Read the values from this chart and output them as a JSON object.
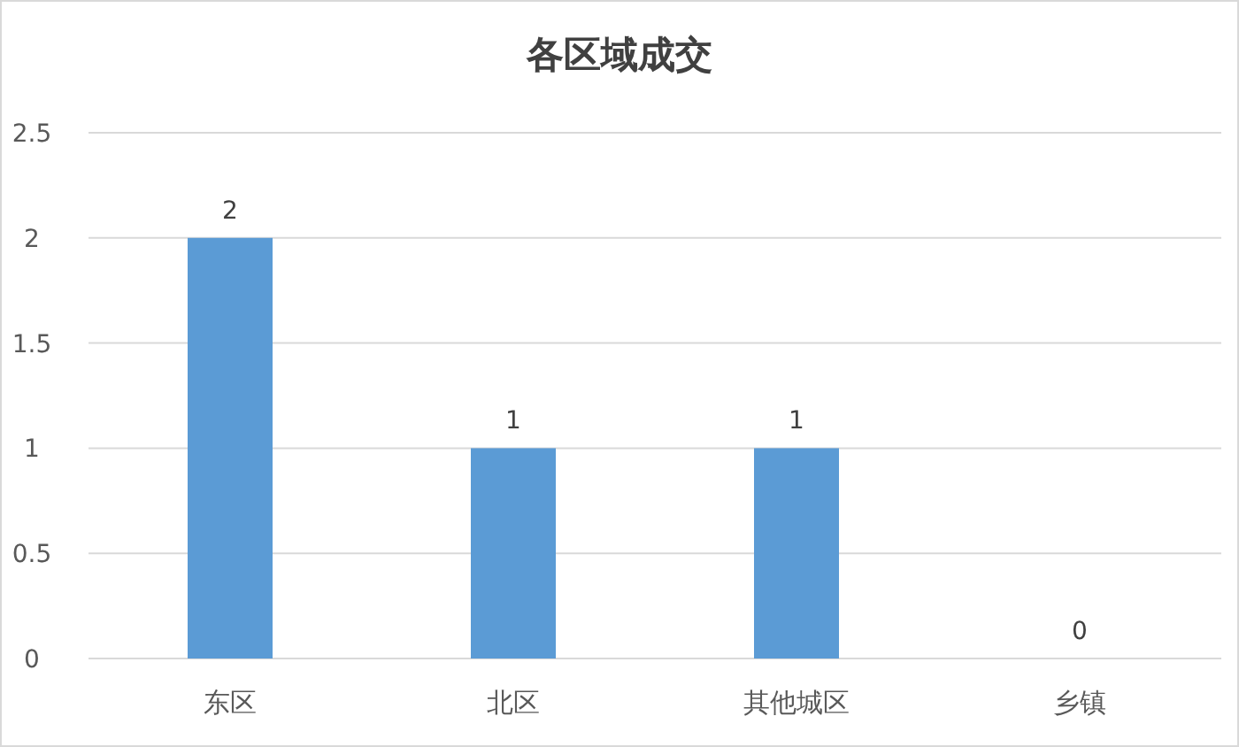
{
  "chart_data": {
    "type": "bar",
    "title": "各区域成交",
    "categories": [
      "东区",
      "北区",
      "其他城区",
      "乡镇"
    ],
    "values": [
      2,
      1,
      1,
      0
    ],
    "color": "#5b9bd5",
    "ylim": [
      0,
      2.5
    ],
    "yticks": [
      0,
      0.5,
      1,
      1.5,
      2,
      2.5
    ],
    "grid": "y",
    "data_labels": true
  }
}
